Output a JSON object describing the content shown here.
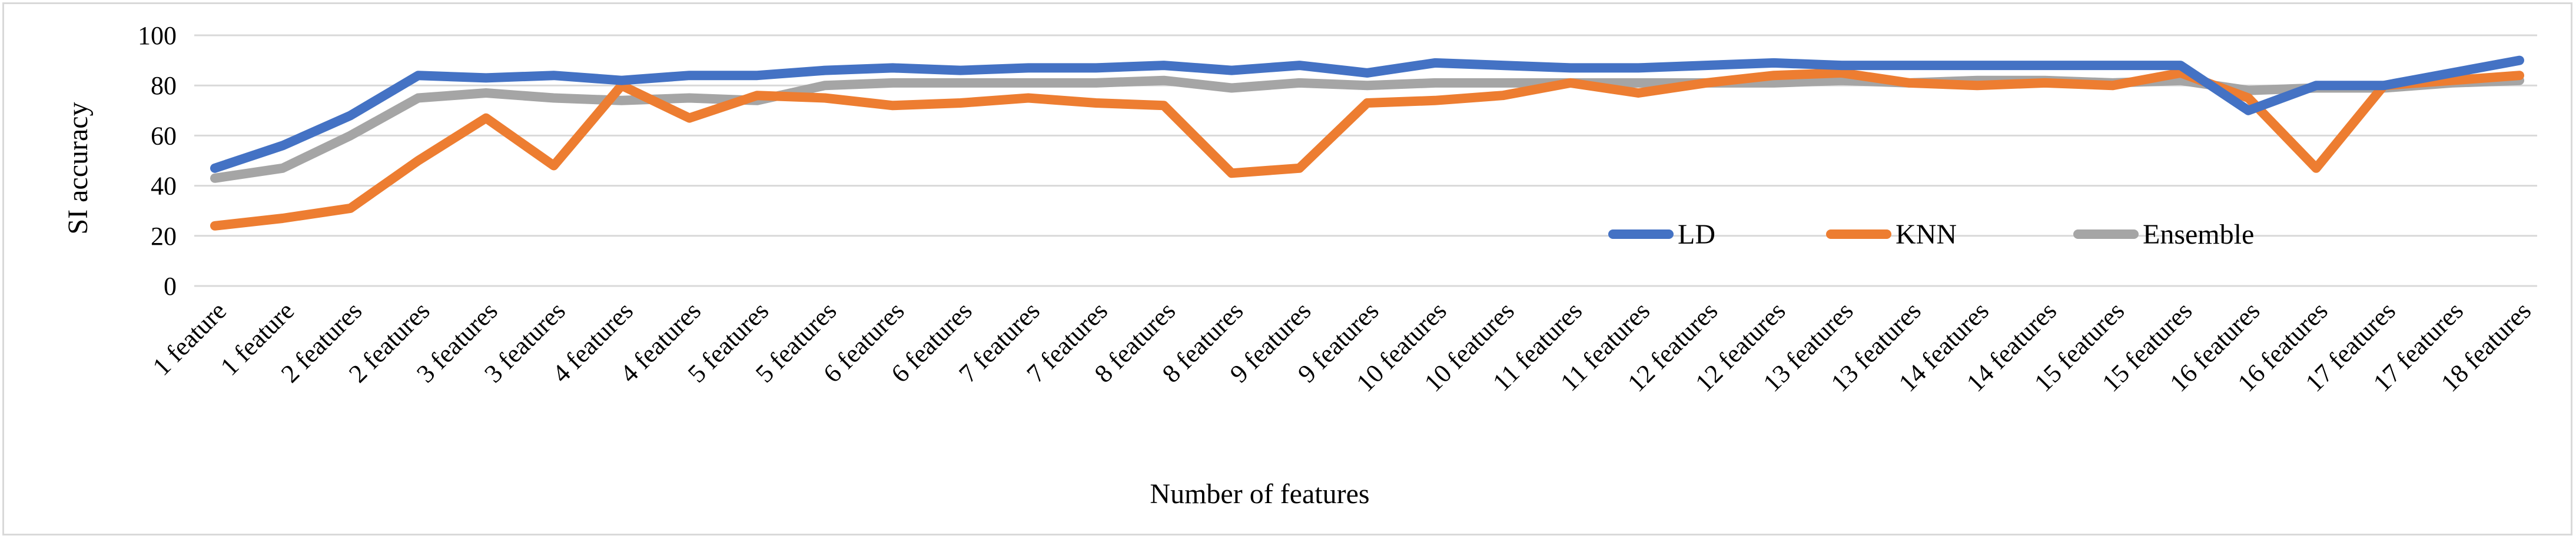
{
  "chart_data": {
    "type": "line",
    "xlabel": "Number of features",
    "ylabel": "SI accuracy",
    "ylim": [
      0,
      100
    ],
    "yticks": [
      0,
      20,
      40,
      60,
      80,
      100
    ],
    "grid": "horizontal",
    "legend_position": "right-inside",
    "categories": [
      "1 feature",
      "1 feature",
      "2 features",
      "2 features",
      "3 features",
      "3 features",
      "4 features",
      "4 features",
      "5 features",
      "5 features",
      "6 features",
      "6 features",
      "7 features",
      "7 features",
      "8 features",
      "8 features",
      "9 features",
      "9 features",
      "10 features",
      "10 features",
      "11 features",
      "11 features",
      "12 features",
      "12 features",
      "13 features",
      "13 features",
      "14 features",
      "14 features",
      "15 features",
      "15 features",
      "16 features",
      "16 features",
      "17 features",
      "17 features",
      "18 features"
    ],
    "series": [
      {
        "name": "LD",
        "color": "#4472c4",
        "values": [
          47,
          56,
          68,
          84,
          83,
          84,
          82,
          84,
          84,
          86,
          87,
          86,
          87,
          87,
          88,
          86,
          88,
          85,
          89,
          88,
          87,
          87,
          88,
          89,
          88,
          88,
          88,
          88,
          88,
          88,
          70,
          80,
          80,
          85,
          90
        ]
      },
      {
        "name": "KNN",
        "color": "#ed7d31",
        "values": [
          24,
          27,
          31,
          50,
          67,
          48,
          80,
          67,
          76,
          75,
          72,
          73,
          75,
          73,
          72,
          45,
          47,
          73,
          74,
          76,
          81,
          77,
          81,
          84,
          85,
          81,
          80,
          81,
          80,
          85,
          75,
          47,
          80,
          82,
          84
        ]
      },
      {
        "name": "Ensemble",
        "color": "#a5a5a5",
        "values": [
          43,
          47,
          60,
          75,
          77,
          75,
          74,
          75,
          74,
          80,
          81,
          81,
          81,
          81,
          82,
          79,
          81,
          80,
          81,
          81,
          81,
          81,
          81,
          81,
          82,
          81,
          82,
          82,
          81,
          82,
          78,
          79,
          79,
          81,
          82
        ]
      }
    ]
  }
}
